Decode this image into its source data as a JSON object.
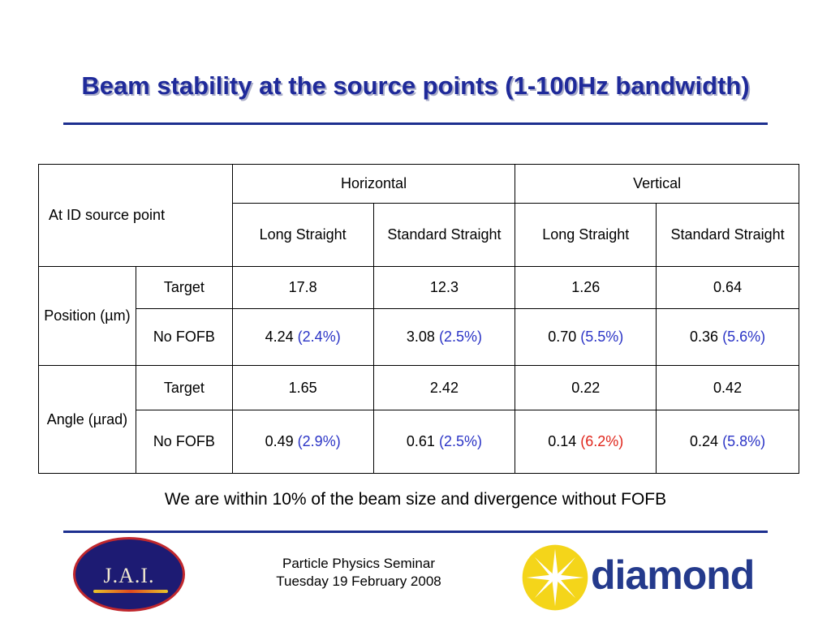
{
  "slide": {
    "title": "Beam stability at the source points (1-100Hz bandwidth)",
    "summary": "We are within 10% of the beam size and divergence without FOFB",
    "footer_line1": "Particle Physics Seminar",
    "footer_line2": "Tuesday 19 February 2008"
  },
  "logos": {
    "jai_text": "J.A.I.",
    "diamond_text": "diamond"
  },
  "table": {
    "corner": "At ID source point",
    "group_headers": [
      "Horizontal",
      "Vertical"
    ],
    "sub_headers": [
      "Long Straight",
      "Standard Straight",
      "Long Straight",
      "Standard Straight"
    ],
    "position_label": "Position (µm)",
    "angle_label": "Angle (µrad)",
    "row_target": "Target",
    "row_nofofb": "No FOFB",
    "position_target": [
      "17.8",
      "12.3",
      "1.26",
      "0.64"
    ],
    "position_nofofb": [
      {
        "value": "4.24",
        "pct": "(2.4%)"
      },
      {
        "value": "3.08",
        "pct": "(2.5%)"
      },
      {
        "value": "0.70",
        "pct": "(5.5%)"
      },
      {
        "value": "0.36",
        "pct": "(5.6%)"
      }
    ],
    "angle_target": [
      "1.65",
      "2.42",
      "0.22",
      "0.42"
    ],
    "angle_nofofb": [
      {
        "value": "0.49",
        "pct": "(2.9%)"
      },
      {
        "value": "0.61",
        "pct": "(2.5%)"
      },
      {
        "value": "0.14",
        "pct": "(6.2%)"
      },
      {
        "value": "0.24",
        "pct": "(5.8%)"
      }
    ]
  },
  "colors": {
    "title": "#1f2a9a",
    "percent": "#2b34c6",
    "percent_alert": "#e0261c",
    "rule": "#1d2f8f"
  }
}
